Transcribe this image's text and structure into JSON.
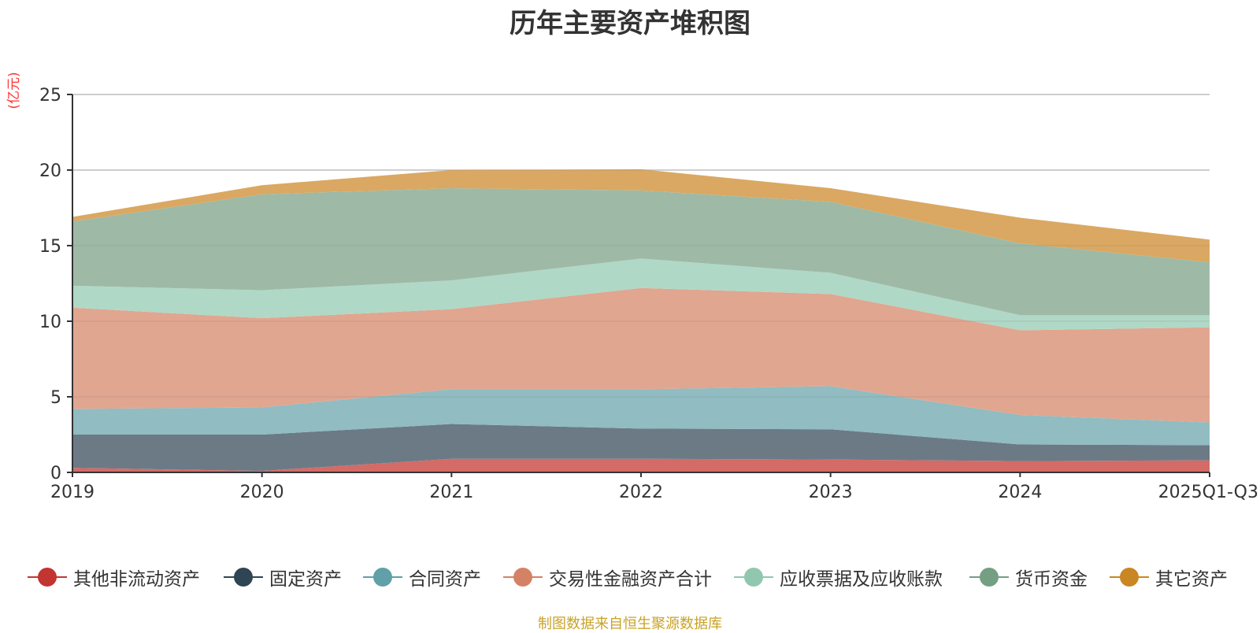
{
  "title": "历年主要资产堆积图",
  "unit": "(亿元)",
  "source": "制图数据来自恒生聚源数据库",
  "chart_data": {
    "type": "area",
    "stacked": true,
    "title": "历年主要资产堆积图",
    "ylabel": "(亿元)",
    "ylim": [
      0,
      25
    ],
    "yticks": [
      0,
      5,
      10,
      15,
      20,
      25
    ],
    "grid": true,
    "legend_position": "bottom",
    "categories": [
      "2019",
      "2020",
      "2021",
      "2022",
      "2023",
      "2024",
      "2025Q1-Q3"
    ],
    "series": [
      {
        "name": "其他非流动资产",
        "legend_color": "#c23531",
        "fill_color": "#d46b66",
        "values": [
          0.3,
          0.1,
          0.9,
          0.9,
          0.85,
          0.75,
          0.8
        ]
      },
      {
        "name": "固定资产",
        "legend_color": "#2f4554",
        "fill_color": "#6c7a86",
        "values": [
          2.2,
          2.4,
          2.3,
          2.0,
          2.0,
          1.1,
          1.0
        ]
      },
      {
        "name": "合同资产",
        "legend_color": "#61a0a8",
        "fill_color": "#90bcc2",
        "values": [
          1.7,
          1.8,
          2.3,
          2.6,
          2.85,
          1.95,
          1.5
        ]
      },
      {
        "name": "交易性金融资产合计",
        "legend_color": "#d48265",
        "fill_color": "#e0a690",
        "values": [
          6.7,
          5.9,
          5.3,
          6.7,
          6.1,
          5.6,
          6.3
        ]
      },
      {
        "name": "应收票据及应收账款",
        "legend_color": "#91c7ae",
        "fill_color": "#b0d8c6",
        "values": [
          1.45,
          1.85,
          1.9,
          1.95,
          1.4,
          1.0,
          0.8
        ]
      },
      {
        "name": "货币资金",
        "legend_color": "#749f83",
        "fill_color": "#9ebaa6",
        "values": [
          4.25,
          6.35,
          6.1,
          4.5,
          4.7,
          4.75,
          3.5
        ]
      },
      {
        "name": "其它资产",
        "legend_color": "#ca8622",
        "fill_color": "#daa862",
        "values": [
          0.3,
          0.6,
          1.2,
          1.4,
          0.9,
          1.7,
          1.5
        ]
      }
    ]
  }
}
